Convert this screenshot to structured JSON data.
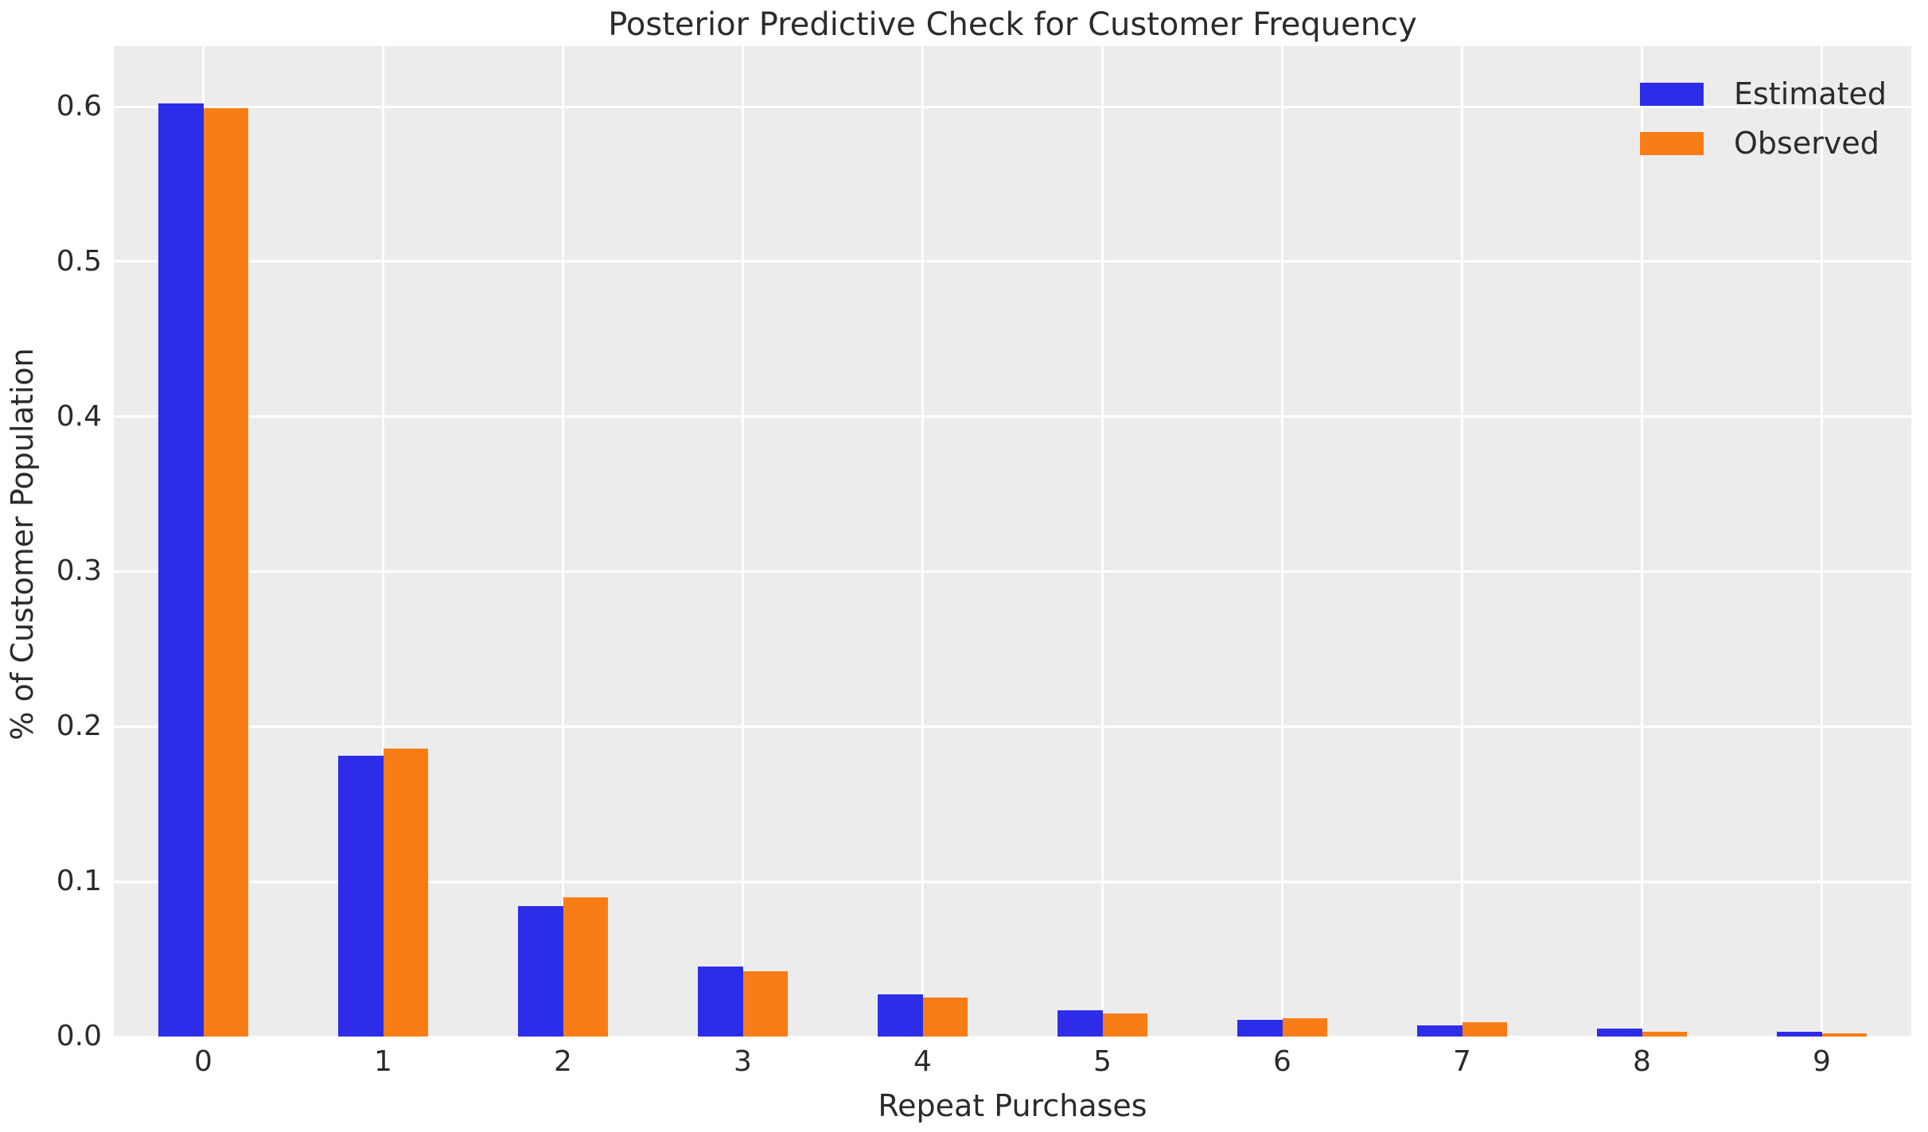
{
  "chart_data": {
    "type": "bar",
    "title": "Posterior Predictive Check for Customer Frequency",
    "xlabel": "Repeat Purchases",
    "ylabel": "% of Customer Population",
    "categories": [
      "0",
      "1",
      "2",
      "3",
      "4",
      "5",
      "6",
      "7",
      "8",
      "9"
    ],
    "series": [
      {
        "name": "Estimated",
        "color": "#2d2de9",
        "values": [
          0.602,
          0.181,
          0.084,
          0.045,
          0.027,
          0.017,
          0.011,
          0.007,
          0.005,
          0.003
        ]
      },
      {
        "name": "Observed",
        "color": "#f97d16",
        "values": [
          0.599,
          0.186,
          0.09,
          0.042,
          0.025,
          0.015,
          0.012,
          0.009,
          0.003,
          0.002
        ]
      }
    ],
    "y_tick_labels": [
      "0.0",
      "0.1",
      "0.2",
      "0.3",
      "0.4",
      "0.5",
      "0.6"
    ],
    "y_ticks": [
      0.0,
      0.1,
      0.2,
      0.3,
      0.4,
      0.5,
      0.6
    ],
    "ylim": [
      0,
      0.639
    ],
    "grid": true,
    "legend_position": "upper right",
    "plot_background_color": "#ececec",
    "grid_color": "#ffffff",
    "text_color": "#2b2b2b"
  }
}
